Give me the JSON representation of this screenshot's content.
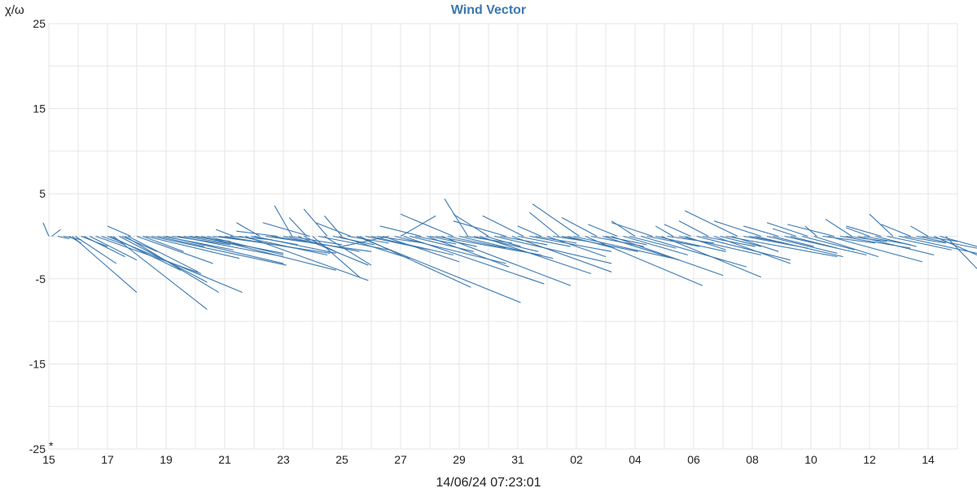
{
  "chart_data": {
    "type": "vector",
    "title": "Wind Vector",
    "ylabel": "χ/ω",
    "ylim": [
      -25,
      25
    ],
    "yticks": [
      "25",
      "15",
      "5",
      "-5",
      "-15",
      "-25"
    ],
    "yticks_values": [
      25,
      15,
      5,
      -5,
      -15,
      -25
    ],
    "xtick_labels": [
      "15",
      "17",
      "19",
      "21",
      "23",
      "25",
      "27",
      "29",
      "31",
      "02",
      "04",
      "06",
      "08",
      "10",
      "12",
      "14"
    ],
    "x_range_days": [
      15,
      46
    ],
    "footer": "14/06/24 07:23:01",
    "corner_mark": "*",
    "grid": true,
    "series_color": "#3a78b0",
    "vectors": [
      [
        15.0,
        0,
        -0.2,
        1.6
      ],
      [
        15.1,
        0,
        0.3,
        0.8
      ],
      [
        15.3,
        0,
        0.4,
        -0.3
      ],
      [
        15.5,
        0,
        0.6,
        -0.4
      ],
      [
        15.7,
        0,
        0.4,
        -0.8
      ],
      [
        15.8,
        0,
        2.2,
        -6.6
      ],
      [
        15.9,
        0,
        1.4,
        -3.2
      ],
      [
        16.1,
        0,
        0.9,
        -1.2
      ],
      [
        16.2,
        0,
        1.4,
        -2.4
      ],
      [
        16.4,
        0,
        1.6,
        -2.8
      ],
      [
        16.6,
        0,
        3.6,
        -4.4
      ],
      [
        16.8,
        0,
        0.8,
        -1.0
      ],
      [
        17.0,
        0,
        4.6,
        -6.6
      ],
      [
        17.1,
        0,
        2.4,
        -4.0
      ],
      [
        17.2,
        0,
        3.2,
        -8.6
      ],
      [
        17.4,
        0,
        3.0,
        -5.4
      ],
      [
        17.5,
        0,
        1.2,
        -1.8
      ],
      [
        17.6,
        0,
        3.2,
        -6.6
      ],
      [
        17.7,
        0,
        2.4,
        -4.2
      ],
      [
        17.8,
        0,
        -0.8,
        1.2
      ],
      [
        18.0,
        0,
        2.6,
        -3.2
      ],
      [
        18.2,
        0,
        1.4,
        -1.8
      ],
      [
        18.3,
        0,
        3.2,
        -2.6
      ],
      [
        18.5,
        0,
        4.6,
        -3.4
      ],
      [
        18.7,
        0,
        1.6,
        -1.2
      ],
      [
        18.9,
        0,
        2.4,
        -1.6
      ],
      [
        19.0,
        0,
        4.0,
        -3.2
      ],
      [
        19.2,
        0,
        2.0,
        -1.0
      ],
      [
        19.4,
        0,
        3.6,
        -2.4
      ],
      [
        19.6,
        0,
        2.2,
        -1.2
      ],
      [
        19.8,
        0,
        1.4,
        -0.6
      ],
      [
        20.0,
        0,
        3.0,
        -2.0
      ],
      [
        20.2,
        0,
        4.6,
        -4.0
      ],
      [
        20.4,
        0,
        2.6,
        -2.2
      ],
      [
        20.6,
        0,
        1.8,
        -0.8
      ],
      [
        20.8,
        0,
        3.8,
        -2.0
      ],
      [
        21.0,
        0,
        2.4,
        -1.4
      ],
      [
        21.2,
        0,
        1.4,
        -0.4
      ],
      [
        21.3,
        0,
        -0.6,
        0.8
      ],
      [
        21.5,
        0,
        3.0,
        -2.2
      ],
      [
        21.7,
        0,
        4.2,
        -5.2
      ],
      [
        21.9,
        0,
        1.6,
        -1.0
      ],
      [
        22.0,
        0,
        2.8,
        -2.0
      ],
      [
        22.2,
        0,
        -0.8,
        1.6
      ],
      [
        22.4,
        0,
        3.6,
        -1.8
      ],
      [
        22.6,
        0,
        1.2,
        -0.6
      ],
      [
        22.8,
        0,
        -1.4,
        0.6
      ],
      [
        23.0,
        0,
        2.6,
        -1.8
      ],
      [
        23.2,
        0,
        1.8,
        -1.0
      ],
      [
        23.3,
        0,
        -0.6,
        3.6
      ],
      [
        23.5,
        0,
        2.4,
        -3.4
      ],
      [
        23.7,
        0,
        1.2,
        -2.0
      ],
      [
        23.8,
        0,
        -0.6,
        2.2
      ],
      [
        23.9,
        0,
        -1.6,
        1.6
      ],
      [
        24.0,
        0,
        1.6,
        -4.8
      ],
      [
        24.2,
        0,
        2.4,
        -1.6
      ],
      [
        24.4,
        0,
        1.6,
        -3.4
      ],
      [
        24.5,
        0,
        -0.8,
        3.2
      ],
      [
        24.7,
        0,
        1.4,
        -1.0
      ],
      [
        24.9,
        0,
        2.4,
        -2.6
      ],
      [
        25.0,
        0,
        -0.6,
        2.4
      ],
      [
        25.2,
        0,
        1.4,
        -0.8
      ],
      [
        25.3,
        0,
        -1.2,
        1.6
      ],
      [
        25.5,
        0,
        5.6,
        -7.8
      ],
      [
        25.6,
        0,
        3.8,
        -6.0
      ],
      [
        25.8,
        0,
        2.2,
        -1.6
      ],
      [
        26.0,
        0,
        2.8,
        -2.2
      ],
      [
        26.2,
        0,
        1.6,
        -0.8
      ],
      [
        26.4,
        0,
        2.6,
        -3.0
      ],
      [
        26.6,
        0,
        -1.6,
        -1.2
      ],
      [
        26.8,
        0,
        3.8,
        -3.2
      ],
      [
        27.0,
        0,
        1.2,
        2.4
      ],
      [
        27.1,
        0,
        4.8,
        -5.6
      ],
      [
        27.3,
        0,
        2.2,
        -1.8
      ],
      [
        27.5,
        0,
        1.4,
        -0.9
      ],
      [
        27.7,
        0,
        -1.4,
        1.2
      ],
      [
        27.9,
        0,
        2.8,
        -3.6
      ],
      [
        28.0,
        0,
        1.6,
        -1.2
      ],
      [
        28.2,
        0,
        3.6,
        -2.2
      ],
      [
        28.4,
        0,
        4.4,
        -5.8
      ],
      [
        28.6,
        0,
        2.0,
        -1.4
      ],
      [
        28.8,
        0,
        -1.8,
        2.6
      ],
      [
        29.0,
        0,
        3.2,
        -2.6
      ],
      [
        29.2,
        0,
        1.6,
        -0.8
      ],
      [
        29.3,
        0,
        -0.8,
        4.4
      ],
      [
        29.5,
        0,
        2.2,
        -1.8
      ],
      [
        29.7,
        0,
        3.8,
        -4.4
      ],
      [
        29.9,
        0,
        1.2,
        -1.2
      ],
      [
        30.0,
        0,
        -1.2,
        2.6
      ],
      [
        30.2,
        0,
        4.0,
        -3.2
      ],
      [
        30.4,
        0,
        1.6,
        -1.0
      ],
      [
        30.6,
        0,
        -1.8,
        1.8
      ],
      [
        30.8,
        0,
        3.4,
        -4.2
      ],
      [
        31.0,
        0,
        1.8,
        -1.2
      ],
      [
        31.2,
        0,
        -1.4,
        2.4
      ],
      [
        31.4,
        0,
        2.8,
        -1.8
      ],
      [
        31.6,
        0,
        1.4,
        -0.8
      ],
      [
        31.8,
        0,
        -0.8,
        1.2
      ],
      [
        32.0,
        0,
        2.0,
        -2.4
      ],
      [
        32.2,
        0,
        1.2,
        -0.6
      ],
      [
        32.4,
        0,
        -1.0,
        2.8
      ],
      [
        32.5,
        0,
        2.6,
        -1.8
      ],
      [
        32.7,
        0,
        1.6,
        -1.4
      ],
      [
        32.9,
        0,
        3.4,
        -2.6
      ],
      [
        33.1,
        0,
        -1.6,
        3.8
      ],
      [
        33.3,
        0,
        4.0,
        -5.8
      ],
      [
        33.5,
        0,
        1.8,
        -1.2
      ],
      [
        33.7,
        0,
        -1.2,
        2.2
      ],
      [
        33.9,
        0,
        2.6,
        -2.8
      ],
      [
        34.0,
        0,
        1.4,
        -1.0
      ],
      [
        34.2,
        0,
        3.8,
        -4.6
      ],
      [
        34.4,
        0,
        -1.0,
        1.4
      ],
      [
        34.6,
        0,
        2.2,
        -2.2
      ],
      [
        34.8,
        0,
        1.6,
        -1.4
      ],
      [
        35.0,
        0,
        -0.8,
        1.8
      ],
      [
        35.2,
        0,
        3.6,
        -3.6
      ],
      [
        35.4,
        0,
        1.8,
        -1.2
      ],
      [
        35.6,
        0,
        -1.4,
        1.6
      ],
      [
        35.7,
        0,
        2.4,
        -1.8
      ],
      [
        35.9,
        0,
        3.4,
        -4.8
      ],
      [
        36.1,
        0,
        1.6,
        -0.8
      ],
      [
        36.3,
        0,
        -0.6,
        1.2
      ],
      [
        36.5,
        0,
        2.8,
        -2.2
      ],
      [
        36.7,
        0,
        1.4,
        -1.6
      ],
      [
        36.9,
        0,
        -0.9,
        1.4
      ],
      [
        37.1,
        0,
        3.2,
        -2.8
      ],
      [
        37.3,
        0,
        1.8,
        -1.2
      ],
      [
        37.5,
        0,
        -1.0,
        1.8
      ],
      [
        37.7,
        0,
        2.6,
        -3.2
      ],
      [
        37.9,
        0,
        1.4,
        -1.2
      ],
      [
        38.1,
        0,
        3.8,
        -2.4
      ],
      [
        38.3,
        0,
        1.6,
        -1.8
      ],
      [
        38.5,
        0,
        -1.8,
        3.0
      ],
      [
        38.7,
        0,
        2.2,
        -1.4
      ],
      [
        38.9,
        0,
        1.2,
        -0.8
      ],
      [
        39.1,
        0,
        3.0,
        -2.4
      ],
      [
        39.3,
        0,
        -1.6,
        1.8
      ],
      [
        39.5,
        0,
        2.4,
        -2.0
      ],
      [
        39.7,
        0,
        1.4,
        -1.2
      ],
      [
        39.9,
        0,
        -1.2,
        1.2
      ],
      [
        40.1,
        0,
        2.8,
        -2.2
      ],
      [
        40.3,
        0,
        1.6,
        -1.4
      ],
      [
        40.5,
        0,
        -0.8,
        0.9
      ],
      [
        40.7,
        0,
        1.8,
        -1.6
      ],
      [
        40.9,
        0,
        -1.4,
        1.6
      ],
      [
        41.1,
        0,
        2.2,
        -2.4
      ],
      [
        41.2,
        0,
        -0.4,
        1.2
      ],
      [
        41.4,
        0,
        1.8,
        -0.8
      ],
      [
        41.6,
        0,
        3.2,
        -3.0
      ],
      [
        41.8,
        0,
        -1.6,
        1.4
      ],
      [
        42.0,
        0,
        2.4,
        -1.4
      ],
      [
        42.2,
        0,
        1.4,
        -0.6
      ],
      [
        42.4,
        0,
        -0.9,
        2.0
      ],
      [
        42.6,
        0,
        2.6,
        -2.2
      ],
      [
        42.8,
        0,
        1.6,
        -1.0
      ],
      [
        43.0,
        0,
        -0.8,
        1.0
      ],
      [
        43.2,
        0,
        1.4,
        -1.2
      ],
      [
        43.4,
        0,
        -1.2,
        1.2
      ],
      [
        43.6,
        0,
        2.2,
        -1.6
      ],
      [
        43.8,
        0,
        -0.8,
        2.6
      ],
      [
        44.0,
        0,
        2.8,
        -2.0
      ],
      [
        44.2,
        0,
        1.4,
        -0.8
      ],
      [
        44.4,
        0,
        -1.0,
        1.4
      ],
      [
        44.6,
        0,
        2.4,
        -1.4
      ],
      [
        44.8,
        0,
        1.2,
        -0.6
      ],
      [
        45.0,
        0,
        -0.6,
        1.2
      ],
      [
        45.2,
        0,
        2.6,
        -2.2
      ],
      [
        45.4,
        0,
        1.8,
        -1.2
      ],
      [
        45.6,
        0,
        4.2,
        -3.8
      ]
    ]
  }
}
